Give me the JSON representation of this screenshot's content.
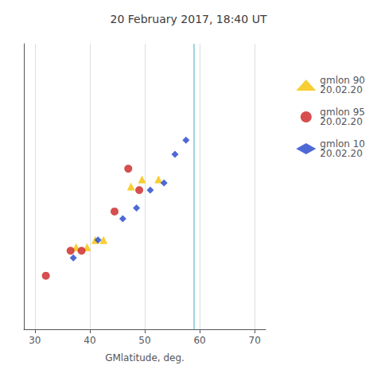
{
  "chart_data": {
    "type": "scatter",
    "title": "20 February 2017, 18:40 UT",
    "xlabel": "GMlatitude, deg.",
    "xlim": [
      28,
      72
    ],
    "xticks": [
      30,
      40,
      50,
      60,
      70
    ],
    "ylim": [
      0.05,
      0.85
    ],
    "tick_labels": "x",
    "grid": true,
    "legend": "right",
    "vlines": [
      {
        "x": 59,
        "color": "#7ec8d8"
      }
    ],
    "series": [
      {
        "name": "gmlon 90\n20.02.20",
        "color": "#f5c200",
        "marker": "triangle",
        "x": [
          37.5,
          39.5,
          41.0,
          42.5,
          47.5,
          49.5,
          52.5
        ],
        "values": [
          0.28,
          0.28,
          0.3,
          0.3,
          0.45,
          0.47,
          0.47
        ]
      },
      {
        "name": "gmlon 95\n20.02.20",
        "color": "#cc2222",
        "marker": "circle",
        "x": [
          32.0,
          36.5,
          38.5,
          44.5,
          47.0,
          49.0
        ],
        "values": [
          0.2,
          0.27,
          0.27,
          0.38,
          0.5,
          0.44
        ]
      },
      {
        "name": "gmlon 10\n20.02.20",
        "color": "#2244cc",
        "marker": "diamond",
        "x": [
          37.0,
          41.5,
          46.0,
          48.5,
          51.0,
          53.5,
          55.5,
          57.5
        ],
        "values": [
          0.25,
          0.3,
          0.36,
          0.39,
          0.44,
          0.46,
          0.54,
          0.58
        ]
      }
    ]
  }
}
